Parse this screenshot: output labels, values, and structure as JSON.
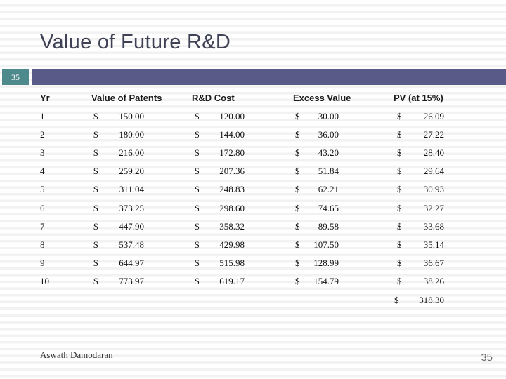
{
  "slide": {
    "title": "Value of Future R&D",
    "badge": "35",
    "footer_author": "Aswath Damodaran",
    "page_number": "35"
  },
  "colors": {
    "badge_teal": "#4e8a8b",
    "bar_purple": "#5a5a88",
    "title_text": "#3f4254",
    "stripe_gray": "#f2f2f2"
  },
  "table": {
    "headers": [
      "Yr",
      "Value of Patents",
      "R&D Cost",
      "Excess Value",
      "PV (at 15%)"
    ],
    "currency_symbol": "$",
    "rows": [
      {
        "yr": "1",
        "patents": "150.00",
        "rd_cost": "120.00",
        "excess": "30.00",
        "pv": "26.09"
      },
      {
        "yr": "2",
        "patents": "180.00",
        "rd_cost": "144.00",
        "excess": "36.00",
        "pv": "27.22"
      },
      {
        "yr": "3",
        "patents": "216.00",
        "rd_cost": "172.80",
        "excess": "43.20",
        "pv": "28.40"
      },
      {
        "yr": "4",
        "patents": "259.20",
        "rd_cost": "207.36",
        "excess": "51.84",
        "pv": "29.64"
      },
      {
        "yr": "5",
        "patents": "311.04",
        "rd_cost": "248.83",
        "excess": "62.21",
        "pv": "30.93"
      },
      {
        "yr": "6",
        "patents": "373.25",
        "rd_cost": "298.60",
        "excess": "74.65",
        "pv": "32.27"
      },
      {
        "yr": "7",
        "patents": "447.90",
        "rd_cost": "358.32",
        "excess": "89.58",
        "pv": "33.68"
      },
      {
        "yr": "8",
        "patents": "537.48",
        "rd_cost": "429.98",
        "excess": "107.50",
        "pv": "35.14"
      },
      {
        "yr": "9",
        "patents": "644.97",
        "rd_cost": "515.98",
        "excess": "128.99",
        "pv": "36.67"
      },
      {
        "yr": "10",
        "patents": "773.97",
        "rd_cost": "619.17",
        "excess": "154.79",
        "pv": "38.26"
      }
    ],
    "total_pv": "318.30"
  }
}
